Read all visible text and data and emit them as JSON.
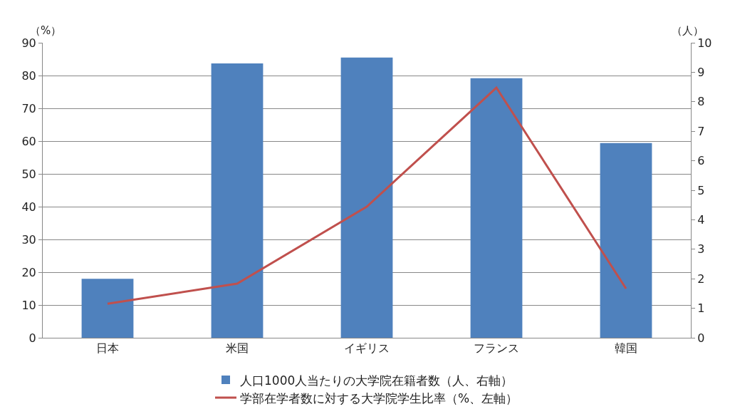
{
  "chart_data": {
    "type": "bar",
    "categories": [
      "日本",
      "米国",
      "イギリス",
      "フランス",
      "韓国"
    ],
    "ylabel": "（%）",
    "y2label": "（人）",
    "series": [
      {
        "name": "人口1000人当たりの大学院在籍者数（人、右軸）",
        "axis": "y2",
        "color": "#4f81bd",
        "values": [
          2.0,
          9.3,
          9.5,
          8.8,
          6.6
        ]
      },
      {
        "name": "学部在学者数に対する大学院学生比率（%、左軸）",
        "type": "line",
        "axis": "y",
        "color": "#c0504d",
        "values": [
          10.4,
          16.5,
          40.0,
          76.3,
          15.0
        ]
      }
    ],
    "ylim": [
      0,
      90
    ],
    "yticks": [
      0,
      10,
      20,
      30,
      40,
      50,
      60,
      70,
      80,
      90
    ],
    "y2lim": [
      0,
      10
    ],
    "y2ticks": [
      0,
      1,
      2,
      3,
      4,
      5,
      6,
      7,
      8,
      9,
      10
    ],
    "grid": "y",
    "legend": "bottom",
    "marker": "none",
    "line_style": "solid"
  }
}
